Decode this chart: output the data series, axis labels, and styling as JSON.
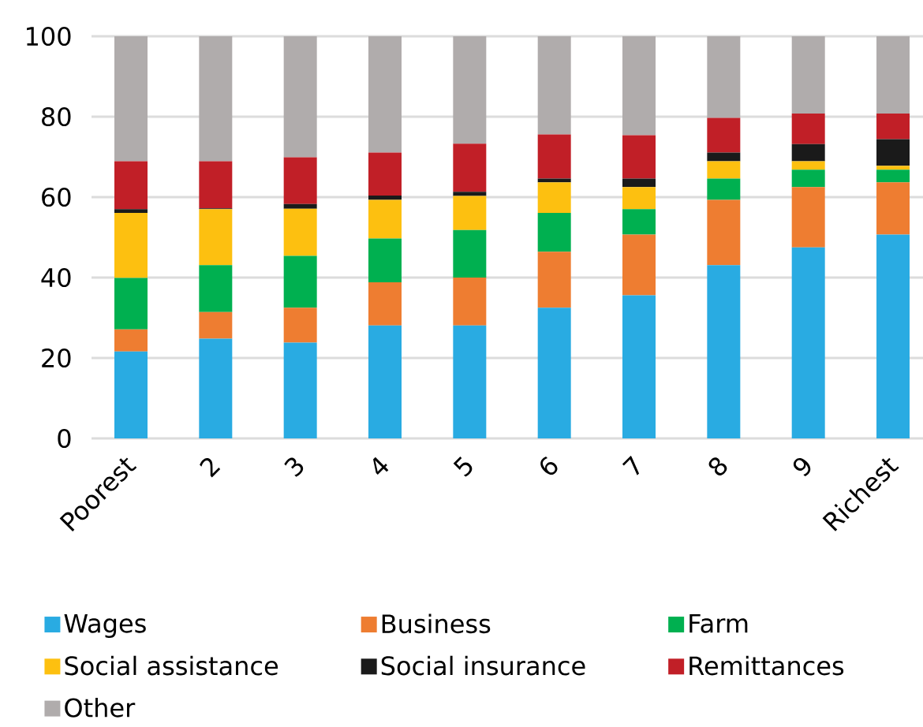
{
  "chart_data": {
    "type": "bar",
    "stacked": true,
    "categories": [
      "Poorest",
      "2",
      "3",
      "4",
      "5",
      "6",
      "7",
      "8",
      "9",
      "Richest"
    ],
    "series": [
      {
        "name": "Wages",
        "color": "#29abe2",
        "values": [
          21.6,
          24.8,
          23.8,
          28.1,
          28.1,
          32.5,
          35.6,
          43.1,
          47.5,
          50.7
        ]
      },
      {
        "name": "Business",
        "color": "#ee7d31",
        "values": [
          5.5,
          6.6,
          8.7,
          10.7,
          11.9,
          13.9,
          15.1,
          16.2,
          15.0,
          13.0
        ]
      },
      {
        "name": "Farm",
        "color": "#00b050",
        "values": [
          12.8,
          11.7,
          12.9,
          10.9,
          11.8,
          9.7,
          6.3,
          5.3,
          4.3,
          3.1
        ]
      },
      {
        "name": "Social assistance",
        "color": "#fdc010",
        "values": [
          16.2,
          13.9,
          11.7,
          9.6,
          8.5,
          7.6,
          5.5,
          4.3,
          2.1,
          1.0
        ]
      },
      {
        "name": "Social insurance",
        "color": "#1a1a1a",
        "values": [
          0.9,
          0.2,
          1.2,
          1.1,
          1.0,
          0.9,
          2.1,
          2.2,
          4.3,
          6.6
        ]
      },
      {
        "name": "Remittances",
        "color": "#c11f27",
        "values": [
          11.9,
          11.7,
          11.6,
          10.7,
          12.0,
          11.0,
          10.8,
          8.6,
          7.6,
          6.4
        ]
      },
      {
        "name": "Other",
        "color": "#b0acac",
        "values": [
          31.1,
          31.1,
          30.1,
          28.9,
          26.7,
          24.4,
          24.6,
          20.3,
          19.2,
          19.2
        ]
      }
    ],
    "ylim": [
      0,
      100
    ],
    "yticks": [
      0,
      20,
      40,
      60,
      80,
      100
    ],
    "grid": "y",
    "legend": "bottom"
  }
}
